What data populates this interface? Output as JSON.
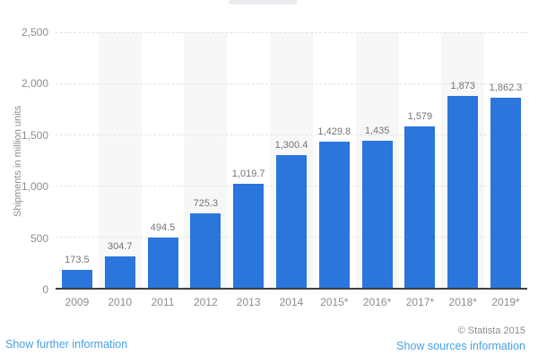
{
  "chart_data": {
    "type": "bar",
    "title": "",
    "ylabel": "Shipments in million units",
    "xlabel": "",
    "ylim": [
      0,
      2500
    ],
    "grid": "dashed horizontal gridlines every 500, alternating light column bands",
    "legend_position": "none",
    "categories": [
      "2009",
      "2010",
      "2011",
      "2012",
      "2013",
      "2014",
      "2015*",
      "2016*",
      "2017*",
      "2018*",
      "2019*"
    ],
    "values": [
      173.5,
      304.7,
      494.5,
      725.3,
      1019.7,
      1300.4,
      1429.8,
      1435,
      1579,
      1873,
      1862.3
    ],
    "value_labels": [
      "173.5",
      "304.7",
      "494.5",
      "725.3",
      "1,019.7",
      "1,300.4",
      "1,429.8",
      "1,435",
      "1,579",
      "1,873",
      "1,862.3"
    ],
    "yticks": [
      {
        "value": 2500,
        "label": "2,500"
      },
      {
        "value": 2000,
        "label": "2,000"
      },
      {
        "value": 1500,
        "label": "1,500"
      },
      {
        "value": 1000,
        "label": "1,000"
      },
      {
        "value": 500,
        "label": "500"
      },
      {
        "value": 0,
        "label": "0"
      }
    ]
  },
  "footer": {
    "further_info_label": "Show further information",
    "copyright": "© Statista 2015",
    "sources_label": "Show sources information"
  },
  "colors": {
    "bar_blue": "#2a76dc",
    "column_band": "#f7f7f8",
    "gridline": "#e3e3e5",
    "axis_line": "#3f3f3f",
    "link_blue": "#46a1e5",
    "tick_text": "#8d8d8d",
    "value_label_text": "#757575",
    "title_placeholder": "#ececf0"
  }
}
